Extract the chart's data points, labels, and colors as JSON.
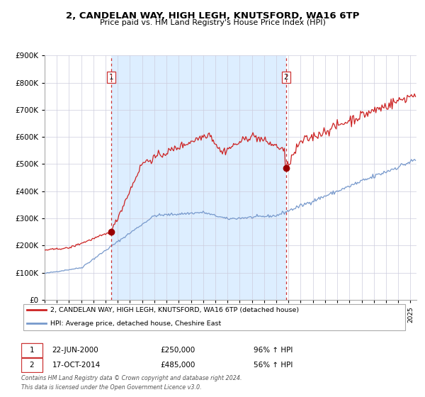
{
  "title": "2, CANDELAN WAY, HIGH LEGH, KNUTSFORD, WA16 6TP",
  "subtitle": "Price paid vs. HM Land Registry's House Price Index (HPI)",
  "legend_line1": "2, CANDELAN WAY, HIGH LEGH, KNUTSFORD, WA16 6TP (detached house)",
  "legend_line2": "HPI: Average price, detached house, Cheshire East",
  "sale1_date": "22-JUN-2000",
  "sale1_price": 250000,
  "sale1_pct": "96%",
  "sale2_date": "17-OCT-2014",
  "sale2_price": 485000,
  "sale2_pct": "56%",
  "footer1": "Contains HM Land Registry data © Crown copyright and database right 2024.",
  "footer2": "This data is licensed under the Open Government Licence v3.0.",
  "hpi_color": "#7799cc",
  "price_color": "#cc2222",
  "marker_color": "#990000",
  "vline_color": "#cc3333",
  "bg_shaded_color": "#ddeeff",
  "ylim": [
    0,
    900000
  ],
  "yticks": [
    0,
    100000,
    200000,
    300000,
    400000,
    500000,
    600000,
    700000,
    800000,
    900000
  ],
  "xlim_start": 1995.0,
  "xlim_end": 2025.5,
  "sale1_x": 2000.47,
  "sale2_x": 2014.79
}
